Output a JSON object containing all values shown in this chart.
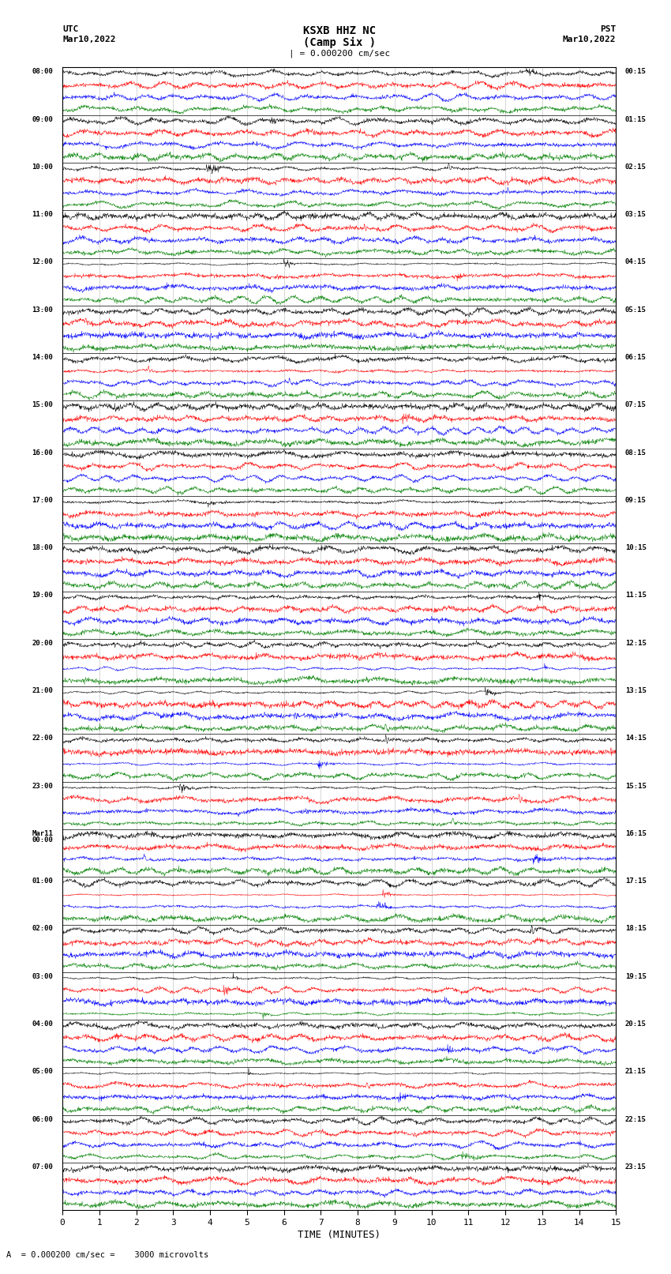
{
  "title_line1": "KSXB HHZ NC",
  "title_line2": "(Camp Six )",
  "scale_text": "| = 0.000200 cm/sec",
  "bottom_text": "A  = 0.000200 cm/sec =    3000 microvolts",
  "utc_label": "UTC",
  "pst_label": "PST",
  "date_left": "Mar10,2022",
  "date_right": "Mar10,2022",
  "xlabel": "TIME (MINUTES)",
  "xmin": 0,
  "xmax": 15,
  "num_hour_groups": 24,
  "traces_per_group": 4,
  "trace_colors": [
    "#000000",
    "#ff0000",
    "#0000ff",
    "#008000"
  ],
  "left_times": [
    "08:00",
    "09:00",
    "10:00",
    "11:00",
    "12:00",
    "13:00",
    "14:00",
    "15:00",
    "16:00",
    "17:00",
    "18:00",
    "19:00",
    "20:00",
    "21:00",
    "22:00",
    "23:00",
    "Mar11\n00:00",
    "01:00",
    "02:00",
    "03:00",
    "04:00",
    "05:00",
    "06:00",
    "07:00"
  ],
  "right_times": [
    "00:15",
    "01:15",
    "02:15",
    "03:15",
    "04:15",
    "05:15",
    "06:15",
    "07:15",
    "08:15",
    "09:15",
    "10:15",
    "11:15",
    "12:15",
    "13:15",
    "14:15",
    "15:15",
    "16:15",
    "17:15",
    "18:15",
    "19:15",
    "20:15",
    "21:15",
    "22:15",
    "23:15"
  ],
  "bg_color": "#ffffff",
  "grid_color": "#888888",
  "seed": 42
}
